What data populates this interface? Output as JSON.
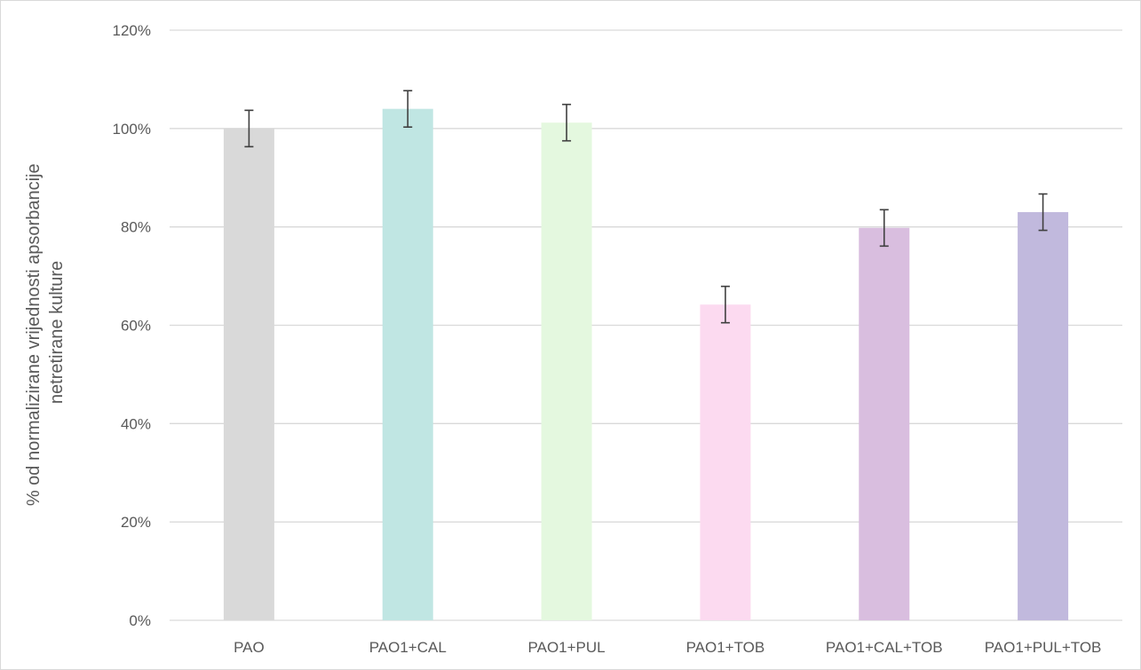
{
  "chart_data": {
    "type": "bar",
    "title": "",
    "xlabel": "",
    "ylabel": "% od normalizirane vrijednosti apsorbancije netretirane kulture",
    "ylabel_lines": [
      "% od normalizirane vrijednosti apsorbancije",
      "netretirane kulture"
    ],
    "categories": [
      "PAO",
      "PAO1+CAL",
      "PAO1+PUL",
      "PAO1+TOB",
      "PAO1+CAL+TOB",
      "PAO1+PUL+TOB"
    ],
    "values": [
      100,
      104,
      101.2,
      64.2,
      79.8,
      83
    ],
    "errors": [
      3.7,
      3.7,
      3.7,
      3.7,
      3.7,
      3.7
    ],
    "ylim": [
      0,
      120
    ],
    "yticks": [
      0,
      20,
      40,
      60,
      80,
      100,
      120
    ],
    "ytick_labels": [
      "0%",
      "20%",
      "40%",
      "60%",
      "80%",
      "100%",
      "120%"
    ],
    "grid": true,
    "legend": "none",
    "bar_colors": [
      "#d9d9d9",
      "#c0e6e3",
      "#e4f8df",
      "#fcdaf0",
      "#d9bedf",
      "#c1b9dd"
    ]
  }
}
